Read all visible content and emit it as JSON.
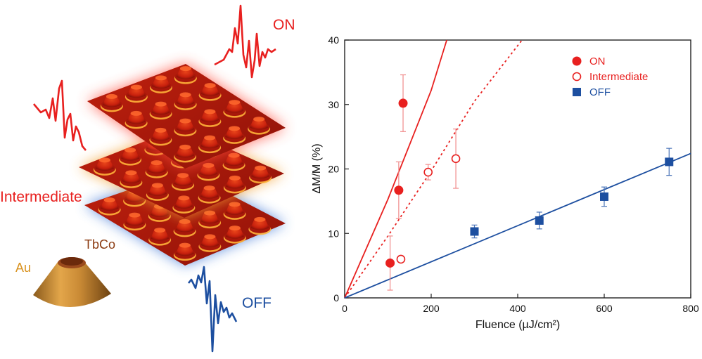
{
  "illustration": {
    "wave_labels": {
      "on": "ON",
      "intermediate": "Intermediate",
      "off": "OFF"
    },
    "cone_labels": {
      "outer": "Au",
      "top": "TbCo"
    },
    "colors": {
      "on": "#e8201f",
      "intermediate": "#e8201f",
      "off": "#1d4fa0",
      "au": "#d9921f",
      "tbco": "#8b3a10"
    }
  },
  "chart_data": {
    "type": "scatter",
    "xlabel": "Fluence (µJ/cm²)",
    "ylabel": "ΔM/M (%)",
    "xlim": [
      0,
      800
    ],
    "ylim": [
      0,
      40
    ],
    "xticks": [
      0,
      200,
      400,
      600,
      800
    ],
    "yticks": [
      0,
      10,
      20,
      30,
      40
    ],
    "legend_position": "top-right",
    "series": [
      {
        "name": "ON",
        "marker": "filled-circle",
        "color": "#e8201f",
        "points": [
          {
            "x": 105,
            "y": 5.4,
            "err": 4.2
          },
          {
            "x": 125,
            "y": 16.7,
            "err": 4.4
          },
          {
            "x": 135,
            "y": 30.2,
            "err": 4.4
          }
        ],
        "fit": {
          "style": "solid",
          "points": [
            [
              0,
              0
            ],
            [
              100,
              15.3
            ],
            [
              200,
              32.2
            ],
            [
              236,
              40
            ]
          ]
        }
      },
      {
        "name": "Intermediate",
        "marker": "open-circle",
        "color": "#e8201f",
        "points": [
          {
            "x": 130,
            "y": 6.0,
            "err": 0.4
          },
          {
            "x": 193,
            "y": 19.5,
            "err": 1.2
          },
          {
            "x": 257,
            "y": 21.6,
            "err": 4.6
          }
        ],
        "fit": {
          "style": "dotted",
          "points": [
            [
              0,
              0
            ],
            [
              100,
              9.6
            ],
            [
              200,
              19.7
            ],
            [
              300,
              30.5
            ],
            [
              410,
              40
            ]
          ]
        }
      },
      {
        "name": "OFF",
        "marker": "filled-square",
        "color": "#1d4fa0",
        "points": [
          {
            "x": 300,
            "y": 10.3,
            "err": 1.0
          },
          {
            "x": 450,
            "y": 12.0,
            "err": 1.3
          },
          {
            "x": 600,
            "y": 15.7,
            "err": 1.5
          },
          {
            "x": 750,
            "y": 21.1,
            "err": 2.1
          }
        ],
        "fit": {
          "style": "solid",
          "points": [
            [
              0,
              0
            ],
            [
              800,
              22.4
            ]
          ]
        }
      }
    ]
  }
}
